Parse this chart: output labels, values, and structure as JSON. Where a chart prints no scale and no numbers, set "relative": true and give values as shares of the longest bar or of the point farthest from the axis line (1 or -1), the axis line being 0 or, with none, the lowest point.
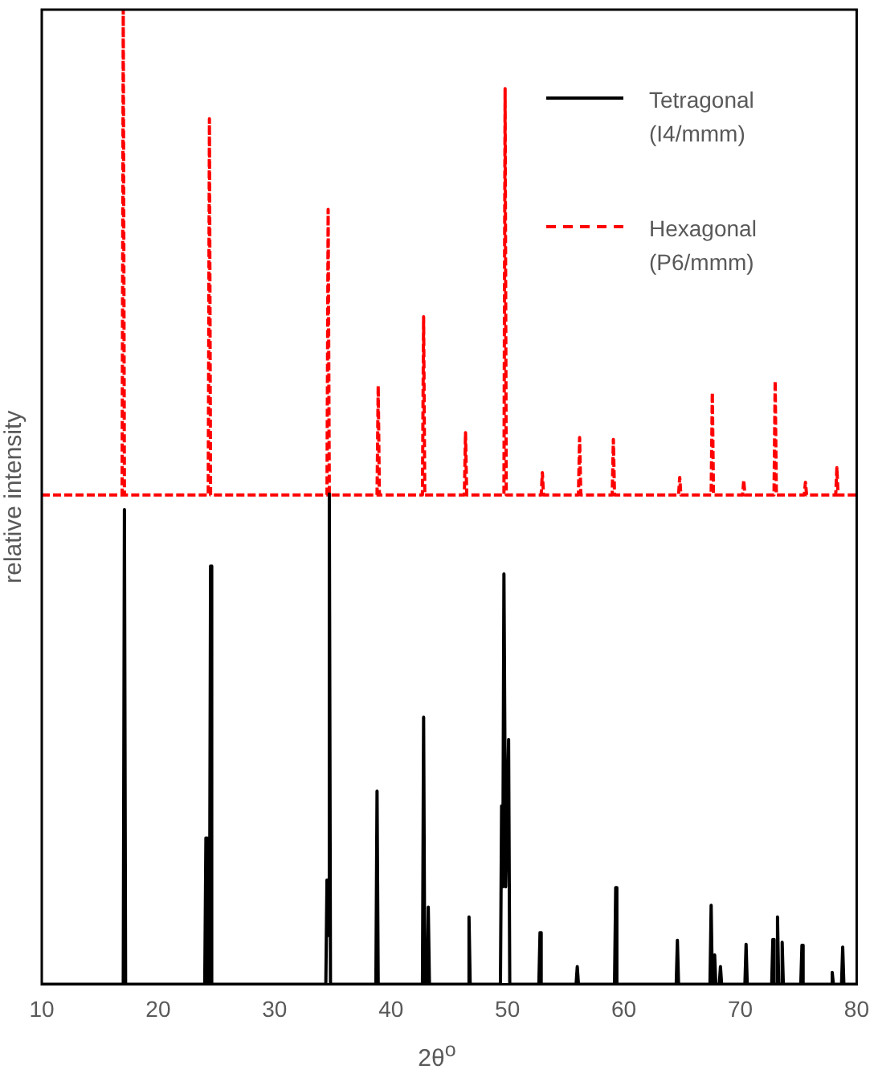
{
  "chart_data": {
    "type": "line",
    "relative": true,
    "xlabel": "2θ$^{o}$",
    "ylabel": "relative intensity",
    "xlim": [
      10,
      80
    ],
    "xticks": [
      10,
      20,
      30,
      40,
      50,
      60,
      70,
      80
    ],
    "grid": false,
    "legend": "top right",
    "marker": "none",
    "series": [
      {
        "name": "Tetragonal (I4/mmm)",
        "color": "#000000",
        "line_style": "solid",
        "x": [
          10,
          17.0,
          17.1,
          17.2,
          24.0,
          24.1,
          24.2,
          24.4,
          24.5,
          24.6,
          34.4,
          34.5,
          34.6,
          34.7,
          34.8,
          38.7,
          38.8,
          38.9,
          42.7,
          42.8,
          42.9,
          43.1,
          43.2,
          43.3,
          46.6,
          46.7,
          46.8,
          49.4,
          49.5,
          49.6,
          49.7,
          49.85,
          50.1,
          50.2,
          52.7,
          52.8,
          52.9,
          55.9,
          56.0,
          56.1,
          59.2,
          59.3,
          59.4,
          64.5,
          64.6,
          64.7,
          67.4,
          67.5,
          67.6,
          67.7,
          67.8,
          67.9,
          68.2,
          68.3,
          68.4,
          70.4,
          70.5,
          70.6,
          72.7,
          72.8,
          72.9,
          73.1,
          73.2,
          73.3,
          73.5,
          73.6,
          73.7,
          75.2,
          75.3,
          75.4,
          77.8,
          77.9,
          78.0,
          78.7,
          78.8,
          78.9,
          80
        ],
        "values": [
          0,
          0,
          0.487,
          0,
          0,
          0.15,
          0,
          0,
          0.429,
          0,
          0,
          0.107,
          0.05,
          0.503,
          0,
          0,
          0.198,
          0,
          0,
          0.274,
          0,
          0,
          0.079,
          0,
          0,
          0.069,
          0,
          0,
          0.183,
          0.1,
          0.421,
          0.1,
          0.251,
          0,
          0,
          0.053,
          0,
          0,
          0.018,
          0,
          0,
          0.099,
          0,
          0,
          0.045,
          0,
          0,
          0.081,
          0,
          0,
          0.03,
          0,
          0,
          0.018,
          0,
          0,
          0.041,
          0,
          0,
          0.046,
          0,
          0,
          0.069,
          0,
          0,
          0.043,
          0,
          0,
          0.04,
          0,
          0,
          0.012,
          0,
          0,
          0.038,
          0,
          0
        ]
      },
      {
        "name": "Hexagonal (P6/mmm)",
        "color": "#ff0000",
        "line_style": "dashed",
        "x": [
          10,
          16.9,
          17.0,
          17.1,
          24.3,
          24.4,
          24.5,
          34.5,
          34.6,
          34.7,
          38.8,
          38.9,
          39.0,
          42.7,
          42.8,
          42.9,
          46.3,
          46.4,
          46.5,
          49.7,
          49.8,
          49.9,
          52.9,
          53.0,
          53.1,
          56.1,
          56.2,
          56.3,
          59.0,
          59.1,
          59.2,
          64.7,
          64.8,
          64.9,
          67.5,
          67.6,
          67.7,
          70.2,
          70.3,
          70.4,
          72.9,
          73.0,
          73.1,
          75.5,
          75.6,
          75.7,
          78.2,
          78.3,
          78.4,
          80
        ],
        "values": [
          0.502,
          0.502,
          1,
          0.502,
          0.502,
          0.888,
          0.502,
          0.502,
          0.795,
          0.502,
          0.502,
          0.614,
          0.502,
          0.502,
          0.685,
          0.502,
          0.502,
          0.566,
          0.502,
          0.502,
          0.919,
          0.502,
          0.502,
          0.525,
          0.502,
          0.502,
          0.561,
          0.502,
          0.502,
          0.559,
          0.502,
          0.502,
          0.52,
          0.502,
          0.502,
          0.607,
          0.502,
          0.502,
          0.517,
          0.502,
          0.502,
          0.619,
          0.502,
          0.502,
          0.515,
          0.502,
          0.502,
          0.53,
          0.502,
          0.502
        ]
      }
    ]
  }
}
